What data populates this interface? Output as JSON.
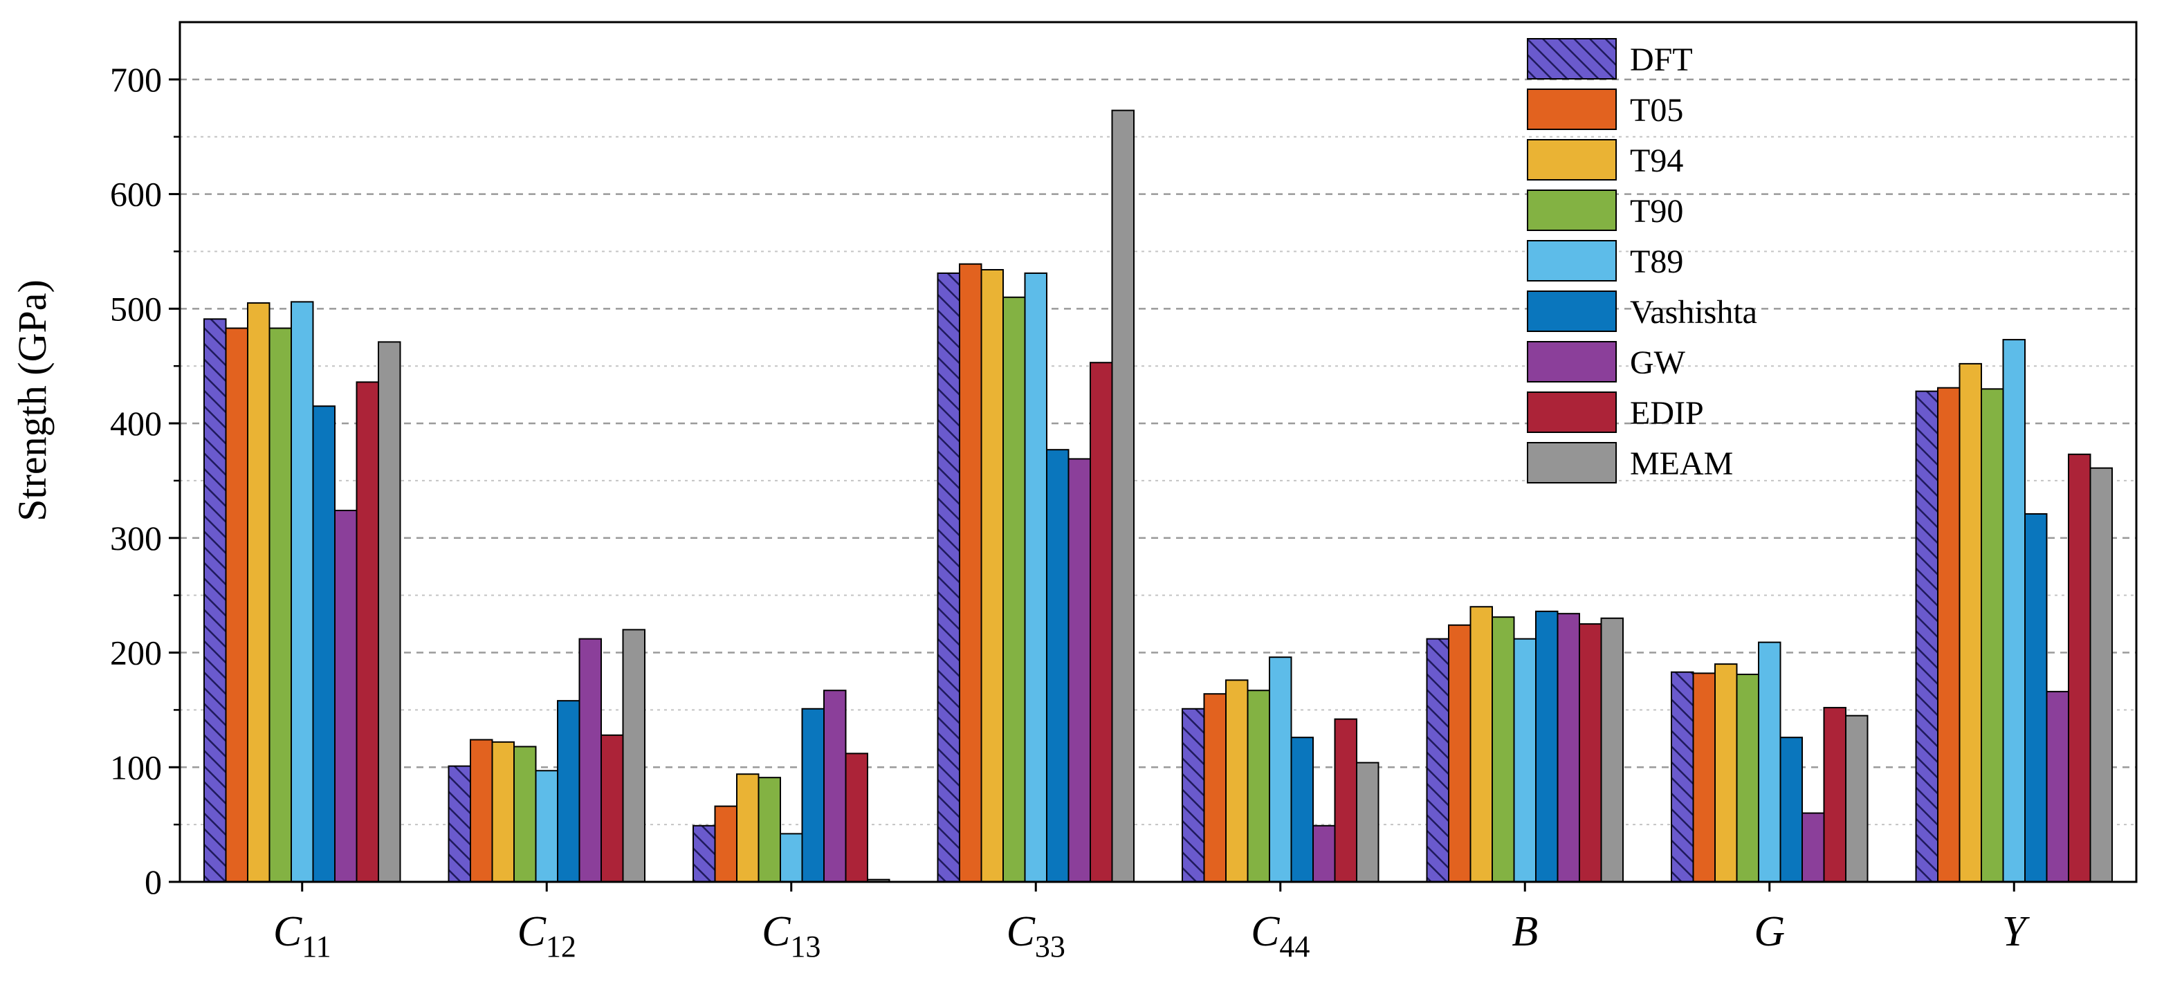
{
  "chart_data": {
    "type": "bar",
    "title": "",
    "xlabel": "",
    "ylabel": "Strength (GPa)",
    "ylim": [
      0,
      750
    ],
    "yticks": [
      0,
      100,
      200,
      300,
      400,
      500,
      600,
      700
    ],
    "grid": "horizontal dashed major and minor",
    "legend_position": "top-right",
    "categories": [
      {
        "base": "C",
        "sub": "11"
      },
      {
        "base": "C",
        "sub": "12"
      },
      {
        "base": "C",
        "sub": "13"
      },
      {
        "base": "C",
        "sub": "33"
      },
      {
        "base": "C",
        "sub": "44"
      },
      {
        "base": "B",
        "sub": ""
      },
      {
        "base": "G",
        "sub": ""
      },
      {
        "base": "Y",
        "sub": ""
      }
    ],
    "series": [
      {
        "name": "DFT",
        "color": "#6a5acd",
        "hatch": true,
        "values": [
          491,
          101,
          49,
          531,
          151,
          212,
          183,
          428
        ]
      },
      {
        "name": "T05",
        "color": "#e2621f",
        "hatch": false,
        "values": [
          483,
          124,
          66,
          539,
          164,
          224,
          182,
          431
        ]
      },
      {
        "name": "T94",
        "color": "#eab334",
        "hatch": false,
        "values": [
          505,
          122,
          94,
          534,
          176,
          240,
          190,
          452
        ]
      },
      {
        "name": "T90",
        "color": "#83b243",
        "hatch": false,
        "values": [
          483,
          118,
          91,
          510,
          167,
          231,
          181,
          430
        ]
      },
      {
        "name": "T89",
        "color": "#5dbce9",
        "hatch": false,
        "values": [
          506,
          97,
          42,
          531,
          196,
          212,
          209,
          473
        ]
      },
      {
        "name": "Vashishta",
        "color": "#0a76bd",
        "hatch": false,
        "values": [
          415,
          158,
          151,
          377,
          126,
          236,
          126,
          321
        ]
      },
      {
        "name": "GW",
        "color": "#8b3f9a",
        "hatch": false,
        "values": [
          324,
          212,
          167,
          369,
          49,
          234,
          60,
          166
        ]
      },
      {
        "name": "EDIP",
        "color": "#ac2338",
        "hatch": false,
        "values": [
          436,
          128,
          112,
          453,
          142,
          225,
          152,
          373
        ]
      },
      {
        "name": "MEAM",
        "color": "#959595",
        "hatch": false,
        "values": [
          471,
          220,
          2,
          673,
          104,
          230,
          145,
          361
        ]
      }
    ]
  }
}
